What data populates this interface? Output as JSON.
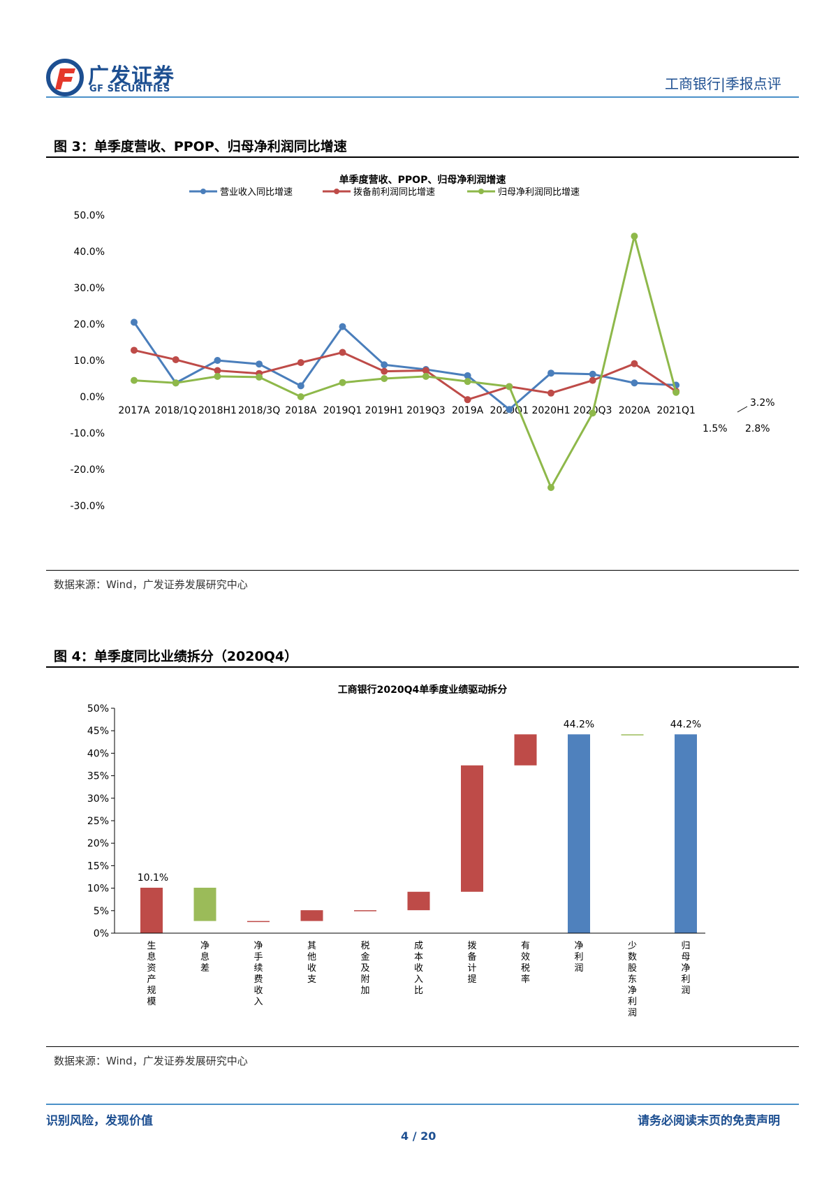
{
  "header": {
    "logo_cn": "广发证券",
    "logo_en": "GF SECURITIES",
    "doc_type": "工商银行|季报点评"
  },
  "figure3": {
    "title": "图 3：单季度营收、PPOP、归母净利润同比增速",
    "source": "数据来源：Wind，广发证券发展研究中心",
    "chart_data": {
      "type": "line",
      "title": "单季度营收、PPOP、归母净利润增速",
      "categories": [
        "2017A",
        "2018/1Q",
        "2018H1",
        "2018/3Q",
        "2018A",
        "2019Q1",
        "2019H1",
        "2019Q3",
        "2019A",
        "2020Q1",
        "2020H1",
        "2020Q3",
        "2020A",
        "2021Q1"
      ],
      "ylim": [
        -30,
        50
      ],
      "yticks": [
        "50.0%",
        "40.0%",
        "30.0%",
        "20.0%",
        "10.0%",
        "0.0%",
        "-10.0%",
        "-20.0%",
        "-30.0%"
      ],
      "series": [
        {
          "name": "营业收入同比增速",
          "color": "#4a7ebb",
          "values": [
            20.5,
            3.8,
            10.0,
            9.0,
            3.0,
            19.3,
            8.8,
            7.5,
            5.8,
            -3.5,
            6.5,
            6.2,
            3.8,
            3.2
          ]
        },
        {
          "name": "拨备前利润同比增速",
          "color": "#be4b48",
          "values": [
            12.8,
            10.2,
            7.2,
            6.4,
            9.4,
            12.2,
            7.0,
            7.2,
            -0.8,
            2.8,
            1.0,
            4.5,
            9.1,
            1.5
          ]
        },
        {
          "name": "归母净利润同比增速",
          "color": "#8eb84a",
          "values": [
            4.5,
            3.8,
            5.6,
            5.4,
            0.0,
            3.9,
            5.0,
            5.6,
            4.2,
            2.8,
            -25.0,
            -4.5,
            44.2,
            1.2
          ]
        }
      ],
      "annotations": {
        "a1": "3.2%",
        "a2": "1.5%",
        "a3": "2.8%"
      }
    }
  },
  "figure4": {
    "title": "图 4：单季度同比业绩拆分（2020Q4）",
    "source": "数据来源：Wind，广发证券发展研究中心",
    "chart_data": {
      "type": "bar",
      "title": "工商银行2020Q4单季度业绩驱动拆分",
      "ylim": [
        0,
        50
      ],
      "yticks": [
        "50%",
        "45%",
        "40%",
        "35%",
        "30%",
        "25%",
        "20%",
        "15%",
        "10%",
        "5%",
        "0%"
      ],
      "categories": [
        "生息资产规模",
        "净息差",
        "净手续费收入",
        "其他收支",
        "税金及附加",
        "成本收入比",
        "拨备计提",
        "有效税率",
        "净利润",
        "少数股东净利润",
        "归母净利润"
      ],
      "bars": [
        {
          "low": 0,
          "high": 10.1,
          "color": "#be4b48"
        },
        {
          "low": 2.7,
          "high": 10.1,
          "color": "#9bbb59"
        },
        {
          "low": 2.6,
          "high": 2.7,
          "color": "#be4b48"
        },
        {
          "low": 2.7,
          "high": 5.1,
          "color": "#be4b48"
        },
        {
          "low": 5.0,
          "high": 5.1,
          "color": "#be4b48"
        },
        {
          "low": 5.1,
          "high": 9.2,
          "color": "#be4b48"
        },
        {
          "low": 9.2,
          "high": 37.3,
          "color": "#be4b48"
        },
        {
          "low": 37.3,
          "high": 44.2,
          "color": "#be4b48"
        },
        {
          "low": 0,
          "high": 44.2,
          "color": "#4f81bd"
        },
        {
          "low": 44.1,
          "high": 44.2,
          "color": "#9bbb59"
        },
        {
          "low": 0,
          "high": 44.2,
          "color": "#4f81bd"
        }
      ],
      "labels": {
        "first": "10.1%",
        "net": "44.2%",
        "parent": "44.2%"
      }
    }
  },
  "footer": {
    "left": "识别风险，发现价值",
    "right": "请务必阅读末页的免责声明",
    "page": "4 / 20"
  }
}
